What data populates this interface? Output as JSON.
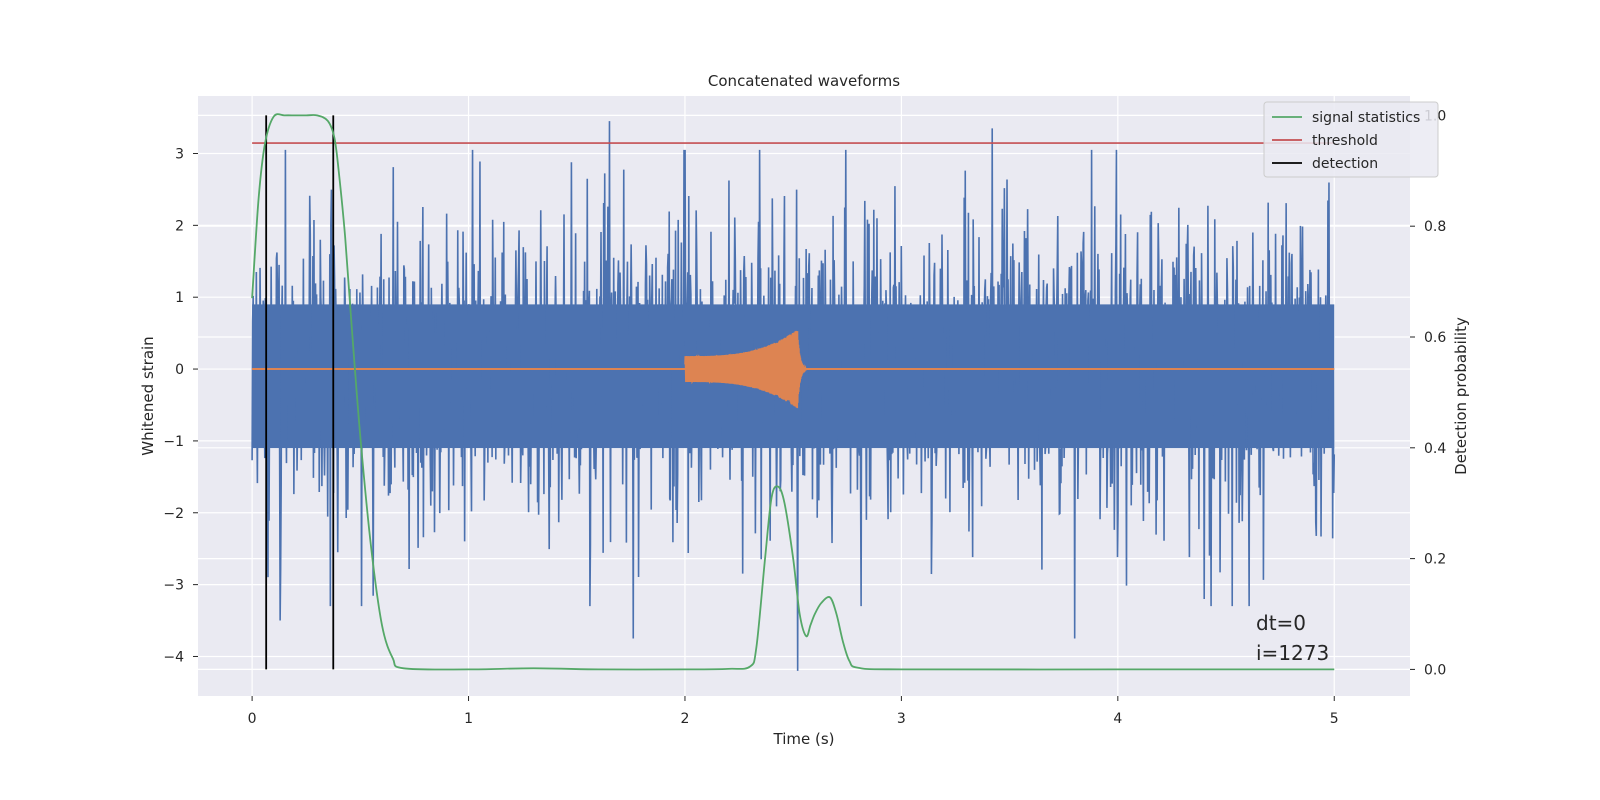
{
  "chart_data": {
    "type": "line",
    "title": "Concatenated waveforms",
    "xlabel": "Time (s)",
    "ylabel_left": "Whitened strain",
    "ylabel_right": "Detection probability",
    "xlim": [
      -0.25,
      5.35
    ],
    "ylim_left": [
      -4.55,
      3.8
    ],
    "ylim_right": [
      -0.048,
      1.035
    ],
    "x_ticks": [
      0,
      1,
      2,
      3,
      4,
      5
    ],
    "y_ticks_left": [
      -4,
      -3,
      -2,
      -1,
      0,
      1,
      2,
      3
    ],
    "y_ticks_right": [
      0.0,
      0.2,
      0.4,
      0.6,
      0.8,
      1.0
    ],
    "grid": true,
    "legend_position": "top-right",
    "colors": {
      "background": "#eaeaf2",
      "grid": "#ffffff",
      "noise": "#4c72b0",
      "injection": "#dd8452",
      "signal_statistics": "#55a868",
      "threshold": "#c44e52",
      "detection": "#000000"
    },
    "series": [
      {
        "name": "",
        "axis": "left",
        "kind": "noise",
        "x_range": [
          0,
          5
        ],
        "samples": 2048,
        "envelope_core": [
          -1.1,
          0.9
        ],
        "peaks": [
          {
            "x": 1.65,
            "y": 3.45
          },
          {
            "x": 3.42,
            "y": 3.35
          },
          {
            "x": 0.13,
            "y": -3.5
          },
          {
            "x": 1.76,
            "y": -3.75
          },
          {
            "x": 2.52,
            "y": -4.2
          },
          {
            "x": 3.8,
            "y": -3.75
          },
          {
            "x": 4.4,
            "y": -3.2
          }
        ]
      },
      {
        "name": "",
        "axis": "left",
        "kind": "chirp",
        "x_range": [
          2.0,
          2.56
        ],
        "start_amplitude": 0.18,
        "peak_amplitude": 0.55,
        "peak_x": 2.52,
        "baseline_x": [
          0,
          5
        ]
      },
      {
        "name": "signal statistics",
        "axis": "right",
        "x": [
          0.0,
          0.03,
          0.06,
          0.1,
          0.15,
          0.2,
          0.25,
          0.3,
          0.35,
          0.38,
          0.4,
          0.43,
          0.46,
          0.5,
          0.55,
          0.6,
          0.65,
          0.7,
          1.0,
          1.3,
          1.6,
          2.0,
          2.2,
          2.3,
          2.33,
          2.37,
          2.4,
          2.43,
          2.46,
          2.5,
          2.53,
          2.56,
          2.58,
          2.6,
          2.63,
          2.67,
          2.7,
          2.73,
          2.76,
          2.8,
          3.0,
          4.0,
          5.0
        ],
        "y": [
          0.67,
          0.85,
          0.95,
          0.998,
          1.0,
          1.0,
          1.0,
          1.0,
          0.99,
          0.96,
          0.9,
          0.78,
          0.62,
          0.42,
          0.22,
          0.08,
          0.02,
          0.002,
          0.0,
          0.002,
          0.0,
          0.0,
          0.001,
          0.005,
          0.04,
          0.2,
          0.31,
          0.33,
          0.3,
          0.2,
          0.1,
          0.06,
          0.08,
          0.1,
          0.12,
          0.13,
          0.1,
          0.05,
          0.015,
          0.003,
          0.0,
          0.0,
          0.0
        ]
      },
      {
        "name": "threshold",
        "axis": "right",
        "x": [
          0,
          5
        ],
        "y": [
          0.95,
          0.95
        ]
      },
      {
        "name": "detection",
        "axis": "right",
        "vertical_lines_x": [
          0.065,
          0.375
        ],
        "y_range": [
          0.0,
          1.0
        ]
      }
    ],
    "annotations": [
      "dt=0",
      "i=1273"
    ]
  }
}
